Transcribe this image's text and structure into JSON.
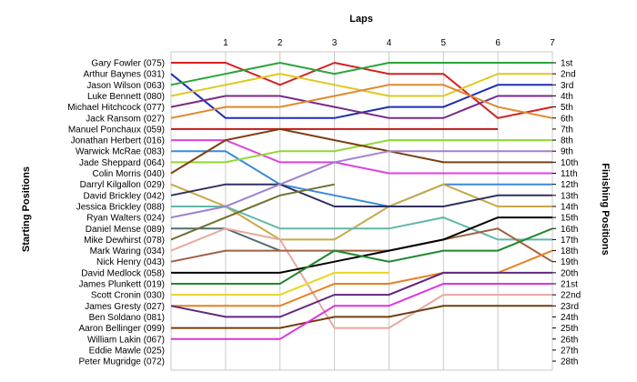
{
  "chart_data": {
    "type": "line",
    "title": "Laps",
    "left_axis_label": "Starting Positions",
    "right_axis_label": "Finishing Positions",
    "laps": [
      1,
      2,
      3,
      4,
      5,
      6,
      7
    ],
    "lap_labels": [
      "1",
      "2",
      "3",
      "4",
      "5",
      "6",
      "7"
    ],
    "finishing_labels": [
      "1st",
      "2nd",
      "3rd",
      "4th",
      "5th",
      "6th",
      "7th",
      "8th",
      "9th",
      "10th",
      "11th",
      "12th",
      "13th",
      "14th",
      "15th",
      "16th",
      "17th",
      "18th",
      "19th",
      "20th",
      "21st",
      "22nd",
      "23rd",
      "24th",
      "25th",
      "26th",
      "27th",
      "28th"
    ],
    "series": [
      {
        "name": "Gary Fowler (075)",
        "color": "#d62020",
        "positions": [
          1,
          1,
          3,
          1,
          2,
          2,
          6,
          5
        ]
      },
      {
        "name": "Arthur Baynes (031)",
        "color": "#1f2fb5",
        "positions": [
          2,
          6,
          6,
          6,
          5,
          5,
          3,
          3
        ]
      },
      {
        "name": "Jason Wilson (063)",
        "color": "#2aa43a",
        "positions": [
          3,
          2,
          1,
          2,
          1,
          1,
          1,
          1
        ]
      },
      {
        "name": "Luke Bennett (080)",
        "color": "#e0c820",
        "positions": [
          4,
          3,
          2,
          3,
          4,
          4,
          2,
          2
        ]
      },
      {
        "name": "Michael Hitchcock (077)",
        "color": "#7a2a8a",
        "positions": [
          5,
          4,
          4,
          5,
          6,
          6,
          4,
          4
        ]
      },
      {
        "name": "Jack Ransom (027)",
        "color": "#e08a30",
        "positions": [
          6,
          5,
          5,
          4,
          3,
          3,
          5,
          6
        ]
      },
      {
        "name": "Manuel Ponchaux (059)",
        "color": "#c01818",
        "positions": [
          7,
          7,
          7,
          7,
          7,
          7,
          7
        ]
      },
      {
        "name": "Jonathan Herbert (016)",
        "color": "#e040e0",
        "positions": [
          8,
          8,
          10,
          10,
          11,
          11,
          11,
          11
        ]
      },
      {
        "name": "Warwick McRae (083)",
        "color": "#3a8ad8",
        "positions": [
          9,
          9,
          12,
          13,
          14,
          12,
          12,
          12
        ]
      },
      {
        "name": "Jade Sheppard (064)",
        "color": "#90d830",
        "positions": [
          10,
          10,
          9,
          9,
          8,
          8,
          8,
          8
        ]
      },
      {
        "name": "Colin Morris (040)",
        "color": "#7a4010",
        "positions": [
          11,
          8,
          7,
          8,
          9,
          10,
          10,
          10
        ]
      },
      {
        "name": "Darryl Kilgallon (029)",
        "color": "#c8a848",
        "positions": [
          12,
          14,
          17,
          17,
          14,
          12,
          14,
          14
        ]
      },
      {
        "name": "David Brickley (042)",
        "color": "#303060",
        "positions": [
          13,
          12,
          12,
          14,
          14,
          14,
          13,
          13
        ]
      },
      {
        "name": "Jessica Brickley (088)",
        "color": "#60b8a8",
        "positions": [
          14,
          14,
          16,
          16,
          16,
          15,
          17,
          17
        ]
      },
      {
        "name": "Ryan Walters (024)",
        "color": "#a080d0",
        "positions": [
          15,
          14,
          12,
          10,
          9,
          9,
          9,
          9
        ]
      },
      {
        "name": "Daniel Mense (089)",
        "color": "#507070",
        "positions": [
          16,
          16,
          18
        ]
      },
      {
        "name": "Mike Dewhirst (078)",
        "color": "#707030",
        "positions": [
          17,
          15,
          13,
          12
        ]
      },
      {
        "name": "Mark Waring (034)",
        "color": "#e8a8a0",
        "positions": [
          18,
          16,
          17,
          25,
          25,
          22,
          22,
          22
        ]
      },
      {
        "name": "Nick Henry (043)",
        "color": "#a06040",
        "positions": [
          19,
          18,
          18,
          18,
          18,
          17,
          16,
          19
        ]
      },
      {
        "name": "David Medlock (058)",
        "color": "#000000",
        "positions": [
          20,
          20,
          20,
          19,
          18,
          17,
          15,
          15
        ]
      },
      {
        "name": "James Plunkett (019)",
        "color": "#208830",
        "positions": [
          21,
          21,
          21,
          18,
          19,
          18,
          18,
          16
        ]
      },
      {
        "name": "Scott Cronin (030)",
        "color": "#e8d820",
        "positions": [
          22,
          22,
          22,
          20,
          20
        ]
      },
      {
        "name": "James Gresty (027)",
        "color": "#e88020",
        "positions": [
          23,
          23,
          23,
          21,
          21,
          20,
          20,
          18
        ]
      },
      {
        "name": "Ben Soldano (081)",
        "color": "#602880",
        "positions": [
          23,
          24,
          24,
          22,
          22,
          20,
          20,
          20
        ]
      },
      {
        "name": "Aaron Bellinger (099)",
        "color": "#704010",
        "positions": [
          25,
          25,
          25,
          24,
          24,
          23,
          23,
          23
        ]
      },
      {
        "name": "William Lakin (067)",
        "color": "#e030e0",
        "positions": [
          26,
          26,
          26,
          23,
          23,
          21,
          21,
          21
        ]
      },
      {
        "name": "Eddie Mawle (025)",
        "color": "#000000",
        "positions": []
      },
      {
        "name": "Peter Mugridge (072)",
        "color": "#000000",
        "positions": []
      }
    ],
    "grid": true
  }
}
